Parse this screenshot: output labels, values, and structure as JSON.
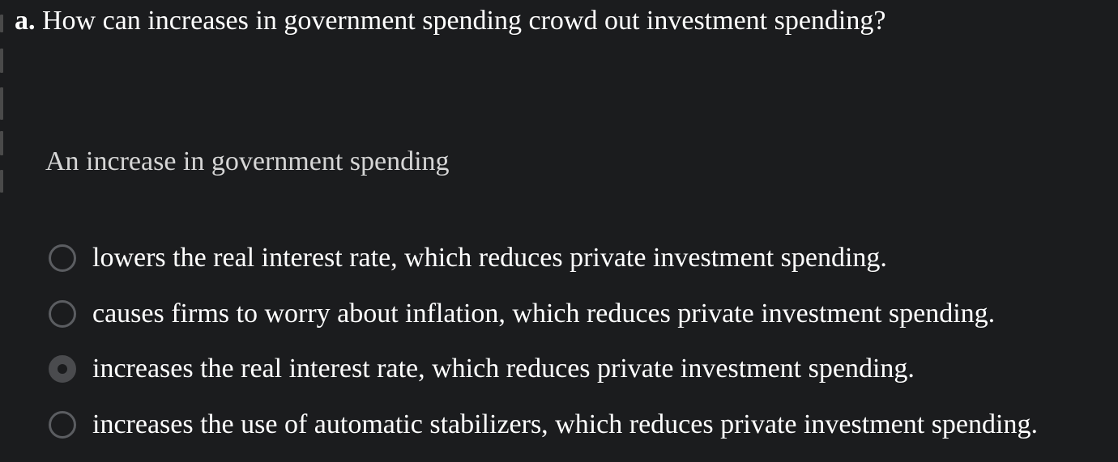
{
  "question": {
    "letter": "a.",
    "text": " How can increases in government spending crowd out investment spending?"
  },
  "prompt": "An increase in government spending",
  "options": [
    {
      "label": "lowers the real interest rate, which reduces private investment spending.",
      "selected": false
    },
    {
      "label": "causes firms to worry about inflation, which reduces private investment spending.",
      "selected": false
    },
    {
      "label": "increases the real interest rate, which reduces private investment spending.",
      "selected": true
    },
    {
      "label": "increases the use of automatic stabilizers, which reduces private investment spending.",
      "selected": false
    }
  ],
  "colors": {
    "background": "#1b1c1e",
    "text": "#ffffff",
    "prompt_text": "#d6d6d6",
    "radio_border": "#5b5d61",
    "radio_selected": "#4a4b4e"
  }
}
